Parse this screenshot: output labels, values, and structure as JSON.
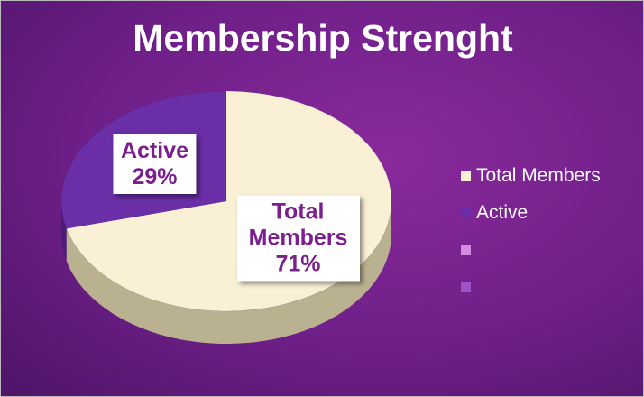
{
  "chart_data": {
    "type": "pie",
    "title": "Membership Strenght",
    "categories": [
      "Total Members",
      "Active",
      null,
      null
    ],
    "values": [
      71,
      29,
      null,
      null
    ],
    "value_labels": [
      "71%",
      "29%",
      null,
      null
    ],
    "colors": [
      "#f9f0d6",
      "#6a2ea6",
      "#d68be2",
      "#9c52c9"
    ],
    "side_colors": [
      "#b9b190",
      "#4a1d7a",
      "#a060b0",
      "#6a3090"
    ],
    "legend": "right"
  }
}
